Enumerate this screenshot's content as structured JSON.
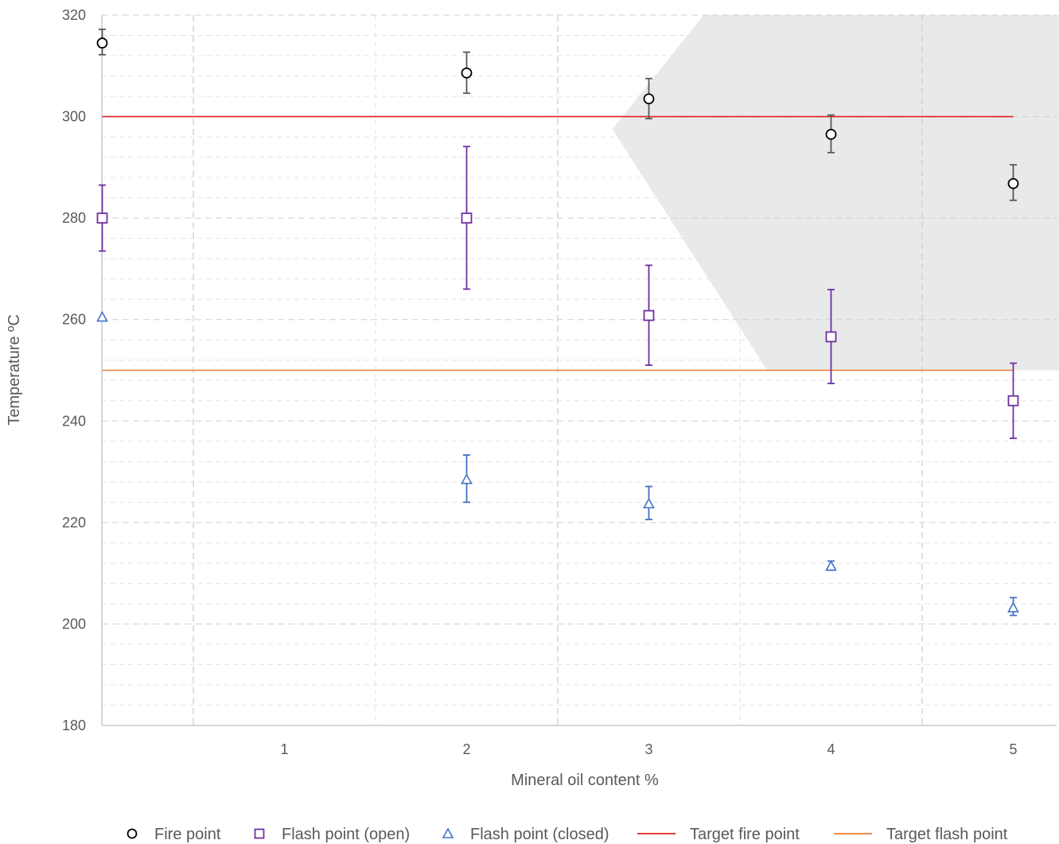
{
  "chart_data": {
    "type": "scatter",
    "title": "",
    "xlabel": "Mineral oil content %",
    "ylabel": "Temperature ºC",
    "xlim": [
      0,
      5.25
    ],
    "ylim": [
      180,
      320
    ],
    "yticks": [
      180,
      200,
      220,
      240,
      260,
      280,
      300,
      320
    ],
    "xticks": [
      1,
      2,
      3,
      4,
      5
    ],
    "x_grid_major": [
      0.5,
      2.5,
      4.5
    ],
    "x_grid_minor": [
      1.5,
      3.5
    ],
    "y_grid_minor_step": 4,
    "grid": true,
    "legend_position": "bottom",
    "series": [
      {
        "name": "Fire point",
        "marker": "circle",
        "color": "#000000",
        "error_color": "#595959",
        "x": [
          0,
          2,
          3,
          4,
          5
        ],
        "y": [
          314.5,
          308.6,
          303.5,
          296.5,
          286.8
        ],
        "err_low": [
          312.2,
          304.6,
          299.6,
          292.9,
          283.5
        ],
        "err_high": [
          317.2,
          312.7,
          307.5,
          300.3,
          290.5
        ]
      },
      {
        "name": "Flash point (open)",
        "marker": "square",
        "color": "#7030A0",
        "error_color": "#7030A0",
        "x": [
          0,
          2,
          3,
          4,
          5
        ],
        "y": [
          280,
          280,
          260.8,
          256.6,
          244
        ],
        "err_low": [
          273.5,
          266,
          251,
          247.4,
          236.6
        ],
        "err_high": [
          286.5,
          294.1,
          270.7,
          265.9,
          251.4
        ]
      },
      {
        "name": "Flash point (closed)",
        "marker": "triangle",
        "color": "#4472C4",
        "error_color": "#4472C4",
        "x": [
          0,
          2,
          3,
          4,
          5
        ],
        "y": [
          260.5,
          228.5,
          223.7,
          211.4,
          203.2
        ],
        "err_low": [
          260.5,
          224,
          220.6,
          210.6,
          201.7
        ],
        "err_high": [
          260.5,
          233.3,
          227.1,
          212.4,
          205.2
        ]
      }
    ],
    "reference_lines": [
      {
        "name": "Target fire point",
        "y": 300,
        "x_from": 0,
        "x_to": 5,
        "color": "#E02020"
      },
      {
        "name": "Target flash point",
        "y": 250,
        "x_from": 0,
        "x_to": 5,
        "color": "#ED7D31"
      }
    ],
    "shaded_region": {
      "color": "#E8EAE9",
      "points_xy": [
        [
          3.3,
          320
        ],
        [
          5.25,
          320
        ],
        [
          5.25,
          250
        ],
        [
          5.2,
          250
        ],
        [
          3.65,
          250
        ],
        [
          2.8,
          297.5
        ]
      ]
    }
  },
  "legend": {
    "items": [
      {
        "label": "Fire point",
        "symbol": "circle",
        "color": "#000000"
      },
      {
        "label": "Flash point (open)",
        "symbol": "square",
        "color": "#7030A0"
      },
      {
        "label": "Flash point (closed)",
        "symbol": "triangle",
        "color": "#4472C4"
      },
      {
        "label": "Target fire point",
        "symbol": "line",
        "color": "#E02020"
      },
      {
        "label": "Target flash point",
        "symbol": "line",
        "color": "#ED7D31"
      }
    ]
  }
}
